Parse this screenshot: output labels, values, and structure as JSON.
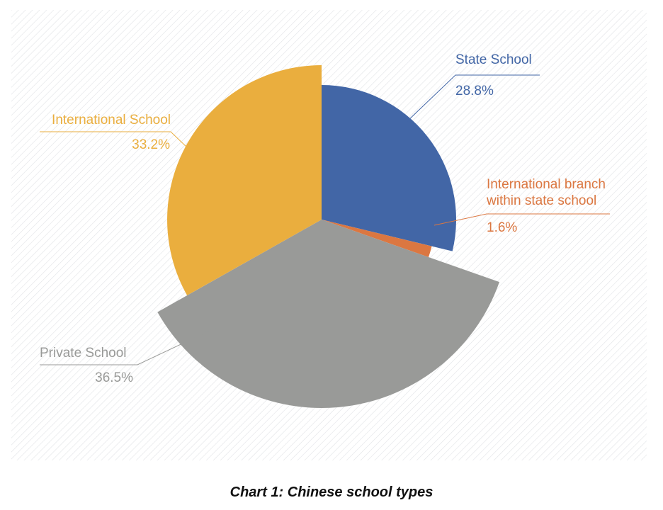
{
  "caption": "Chart 1: Chinese school types",
  "colors": {
    "state": "#4266a6",
    "branch": "#db7741",
    "private": "#999a98",
    "international": "#eaae3e"
  },
  "chart_data": {
    "type": "pie",
    "title": "",
    "exploded": true,
    "slices": [
      {
        "key": "state",
        "label_lines": [
          "State School"
        ],
        "value": 28.8,
        "value_label": "28.8%",
        "color": "#4266a6"
      },
      {
        "key": "branch",
        "label_lines": [
          "International branch",
          "within state school"
        ],
        "value": 1.6,
        "value_label": "1.6%",
        "color": "#db7741"
      },
      {
        "key": "private",
        "label_lines": [
          "Private School"
        ],
        "value": 36.5,
        "value_label": "36.5%",
        "color": "#999a98"
      },
      {
        "key": "international",
        "label_lines": [
          "International School"
        ],
        "value": 33.2,
        "value_label": "33.2%",
        "color": "#eaae3e"
      }
    ]
  }
}
